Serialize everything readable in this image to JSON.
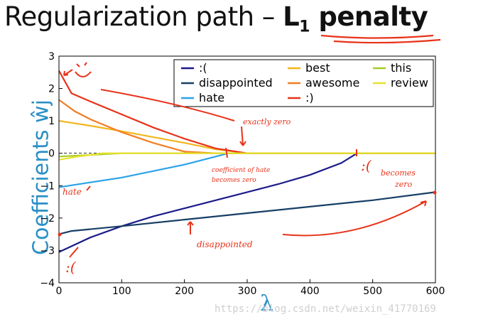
{
  "title": {
    "text": "Regularization path – ",
    "bold_main": "L",
    "bold_sub": "1",
    "bold_rest": " penalty"
  },
  "watermark": "https://blog.csdn.net/weixin_41770169",
  "chart_data": {
    "type": "line",
    "title": "Regularization path – L1 penalty",
    "xlabel": "λ",
    "ylabel": "Coefficients ŵj",
    "xlim": [
      0,
      600
    ],
    "ylim": [
      -4,
      3
    ],
    "xticks": [
      0,
      100,
      200,
      300,
      400,
      500,
      600
    ],
    "yticks": [
      3,
      2,
      1,
      0,
      -1,
      -2,
      -3,
      -4
    ],
    "grid": false,
    "legend_position": "top-right",
    "series": [
      {
        "name": ":(",
        "color": "#1b1b8a",
        "x": [
          0,
          50,
          100,
          150,
          200,
          250,
          300,
          350,
          400,
          450,
          475,
          600
        ],
        "y": [
          -3.05,
          -2.6,
          -2.25,
          -1.95,
          -1.7,
          -1.45,
          -1.2,
          -0.95,
          -0.67,
          -0.3,
          0.0,
          0.0
        ]
      },
      {
        "name": "disappointed",
        "color": "#173f66",
        "x": [
          0,
          20,
          100,
          200,
          300,
          400,
          500,
          600
        ],
        "y": [
          -2.5,
          -2.4,
          -2.25,
          -2.05,
          -1.85,
          -1.65,
          -1.45,
          -1.2
        ]
      },
      {
        "name": "hate",
        "color": "#2aa3e8",
        "x": [
          0,
          50,
          100,
          150,
          200,
          250,
          270,
          600
        ],
        "y": [
          -1.05,
          -0.9,
          -0.75,
          -0.55,
          -0.35,
          -0.1,
          0.0,
          0.0
        ]
      },
      {
        "name": "best",
        "color": "#f2b61e",
        "x": [
          0,
          50,
          100,
          150,
          200,
          250,
          300,
          600
        ],
        "y": [
          1.0,
          0.85,
          0.68,
          0.5,
          0.32,
          0.12,
          0.0,
          0.0
        ]
      },
      {
        "name": "awesome",
        "color": "#f37d23",
        "x": [
          0,
          25,
          50,
          100,
          150,
          200,
          250,
          600
        ],
        "y": [
          1.65,
          1.3,
          1.05,
          0.65,
          0.32,
          0.05,
          0.0,
          0.0
        ]
      },
      {
        "name": ":)",
        "color": "#e8321a",
        "x": [
          0,
          20,
          50,
          100,
          150,
          200,
          250,
          300,
          600
        ],
        "y": [
          2.55,
          1.85,
          1.6,
          1.2,
          0.8,
          0.45,
          0.15,
          0.0,
          0.0
        ]
      },
      {
        "name": "this",
        "color": "#a4cf25",
        "x": [
          0,
          50,
          100,
          600
        ],
        "y": [
          -0.1,
          -0.05,
          0.0,
          0.0
        ]
      },
      {
        "name": "review",
        "color": "#e8e02c",
        "x": [
          0,
          30,
          70,
          600
        ],
        "y": [
          -0.2,
          -0.1,
          0.0,
          0.0
        ]
      }
    ]
  },
  "annotations": {
    "exactly_zero": "exactly zero",
    "coeff_hate": "coefficient of hate",
    "becomes_zero_1": "becomes zero",
    "hate": "hate",
    "sad_becomes": "becomes",
    "sad_zero": "zero",
    "disappointed": "disappointed",
    "sad_face": ":("
  }
}
